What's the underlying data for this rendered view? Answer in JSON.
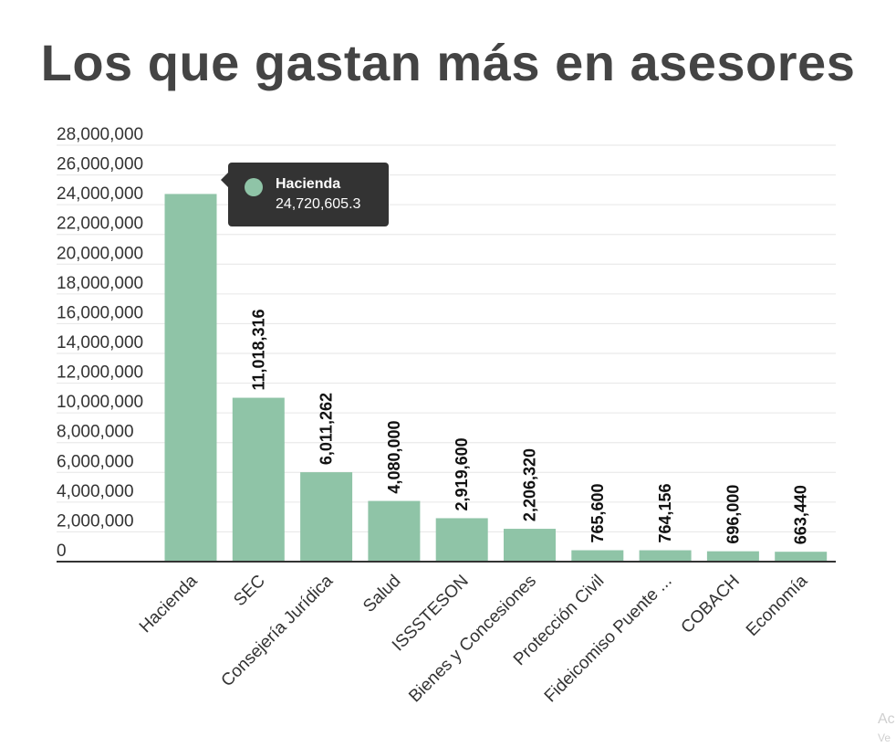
{
  "title": "Los que gastan más en asesores",
  "colors": {
    "bar": "#8fc4a7",
    "grid": "#e6e6e6",
    "axis": "#333333",
    "text": "#333333",
    "tooltip_bg": "#333333"
  },
  "tooltip": {
    "name": "Hacienda",
    "value": "24,720,605.3"
  },
  "watermark": {
    "line1": "Ac",
    "line2": "Ve"
  },
  "chart_data": {
    "type": "bar",
    "title": "Los que gastan más en asesores",
    "xlabel": "",
    "ylabel": "",
    "ylim": [
      0,
      28000000
    ],
    "yticks": [
      0,
      2000000,
      4000000,
      6000000,
      8000000,
      10000000,
      12000000,
      14000000,
      16000000,
      18000000,
      20000000,
      22000000,
      24000000,
      26000000,
      28000000
    ],
    "ytick_labels": [
      "0",
      "2,000,000",
      "4,000,000",
      "6,000,000",
      "8,000,000",
      "10,000,000",
      "12,000,000",
      "14,000,000",
      "16,000,000",
      "18,000,000",
      "20,000,000",
      "22,000,000",
      "24,000,000",
      "26,000,000",
      "28,000,000"
    ],
    "grid": true,
    "categories": [
      "Hacienda",
      "SEC",
      "Consejería Jurídica",
      "Salud",
      "ISSSTESON",
      "Bienes y Concesiones",
      "Protección Civil",
      "Fideicomiso Puente ...",
      "COBACH",
      "Economía"
    ],
    "values": [
      24720605.3,
      11018316,
      6011262,
      4080000,
      2919600,
      2206320,
      765600,
      764156,
      696000,
      663440
    ],
    "data_labels": [
      "",
      "11,018,316",
      "6,011,262",
      "4,080,000",
      "2,919,600",
      "2,206,320",
      "765,600",
      "764,156",
      "696,000",
      "663,440"
    ]
  }
}
